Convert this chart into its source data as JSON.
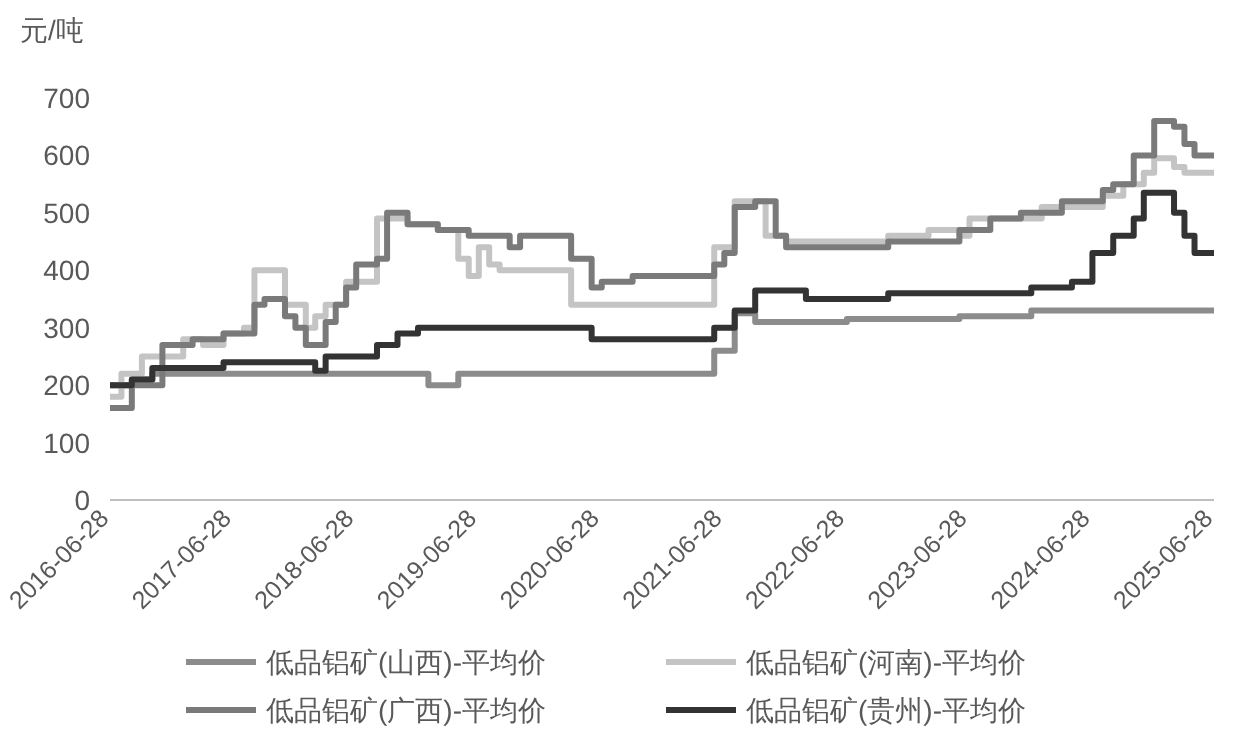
{
  "chart_data": {
    "type": "step",
    "ylabel": "元/吨",
    "ylim": [
      0,
      700
    ],
    "yticks": [
      0,
      100,
      200,
      300,
      400,
      500,
      600,
      700
    ],
    "xlim": [
      "2016-06-28",
      "2025-06-28"
    ],
    "xticks": [
      "2016-06-28",
      "2017-06-28",
      "2018-06-28",
      "2019-06-28",
      "2020-06-28",
      "2021-06-28",
      "2022-06-28",
      "2023-06-28",
      "2024-06-28",
      "2025-06-28"
    ],
    "legend": "bottom",
    "series": [
      {
        "name": "低品铝矿(山西)-平均价",
        "color": "#8c8c8c",
        "x": [
          "2016-06-28",
          "2016-09",
          "2016-11",
          "2019-02",
          "2019-05",
          "2021-06",
          "2021-08",
          "2021-10",
          "2022-07",
          "2023-06",
          "2024-01",
          "2025-06-28"
        ],
        "values": [
          200,
          210,
          220,
          200,
          220,
          260,
          325,
          310,
          315,
          320,
          330,
          330
        ]
      },
      {
        "name": "低品铝矿(河南)-平均价",
        "color": "#c4c4c4",
        "x": [
          "2016-06-28",
          "2016-08",
          "2016-10",
          "2017-02",
          "2017-04",
          "2017-06",
          "2017-08",
          "2017-09",
          "2017-12",
          "2018-02",
          "2018-03",
          "2018-04",
          "2018-06",
          "2018-09",
          "2018-12",
          "2019-03",
          "2019-05",
          "2019-06",
          "2019-07",
          "2019-08",
          "2019-09",
          "2020-04",
          "2021-06",
          "2021-08",
          "2021-11",
          "2022-01",
          "2022-11",
          "2023-03",
          "2023-06",
          "2023-07",
          "2024-02",
          "2024-08",
          "2024-10",
          "2024-12",
          "2025-01",
          "2025-03",
          "2025-04",
          "2025-06-28"
        ],
        "values": [
          180,
          220,
          250,
          280,
          270,
          290,
          300,
          400,
          340,
          300,
          320,
          340,
          380,
          490,
          480,
          470,
          420,
          390,
          440,
          410,
          400,
          340,
          440,
          520,
          460,
          450,
          460,
          470,
          460,
          490,
          510,
          530,
          550,
          570,
          595,
          580,
          570,
          570
        ]
      },
      {
        "name": "低品铝矿(广西)-平均价",
        "color": "#7a7a7a",
        "x": [
          "2016-06-28",
          "2016-09",
          "2016-12",
          "2017-03",
          "2017-06",
          "2017-09",
          "2017-10",
          "2017-12",
          "2018-01",
          "2018-02",
          "2018-04",
          "2018-05",
          "2018-06",
          "2018-07",
          "2018-09",
          "2018-10",
          "2018-12",
          "2019-03",
          "2019-06",
          "2019-10",
          "2019-11",
          "2020-04",
          "2020-06",
          "2020-07",
          "2020-10",
          "2021-06",
          "2021-07",
          "2021-08",
          "2021-10",
          "2021-12",
          "2022-01",
          "2022-11",
          "2023-06",
          "2023-09",
          "2023-12",
          "2024-04",
          "2024-08",
          "2024-09",
          "2024-11",
          "2025-01",
          "2025-03",
          "2025-04",
          "2025-05",
          "2025-06-28"
        ],
        "values": [
          160,
          200,
          270,
          280,
          290,
          340,
          350,
          320,
          300,
          270,
          310,
          340,
          370,
          410,
          420,
          500,
          480,
          470,
          460,
          440,
          460,
          420,
          370,
          380,
          390,
          410,
          430,
          510,
          520,
          460,
          440,
          450,
          470,
          490,
          500,
          520,
          540,
          550,
          600,
          660,
          650,
          620,
          600,
          600
        ]
      },
      {
        "name": "低品铝矿(贵州)-平均价",
        "color": "#333333",
        "x": [
          "2016-06-28",
          "2016-09",
          "2016-11",
          "2017-06",
          "2018-03",
          "2018-04",
          "2018-09",
          "2018-11",
          "2019-01",
          "2020-06",
          "2021-06",
          "2021-08",
          "2021-10",
          "2022-03",
          "2022-11",
          "2024-01",
          "2024-05",
          "2024-07",
          "2024-09",
          "2024-11",
          "2024-12",
          "2025-03",
          "2025-04",
          "2025-05",
          "2025-06-28"
        ],
        "values": [
          200,
          210,
          230,
          240,
          225,
          250,
          270,
          290,
          300,
          280,
          300,
          330,
          365,
          350,
          360,
          370,
          380,
          430,
          460,
          490,
          535,
          500,
          460,
          430,
          430
        ]
      }
    ]
  }
}
